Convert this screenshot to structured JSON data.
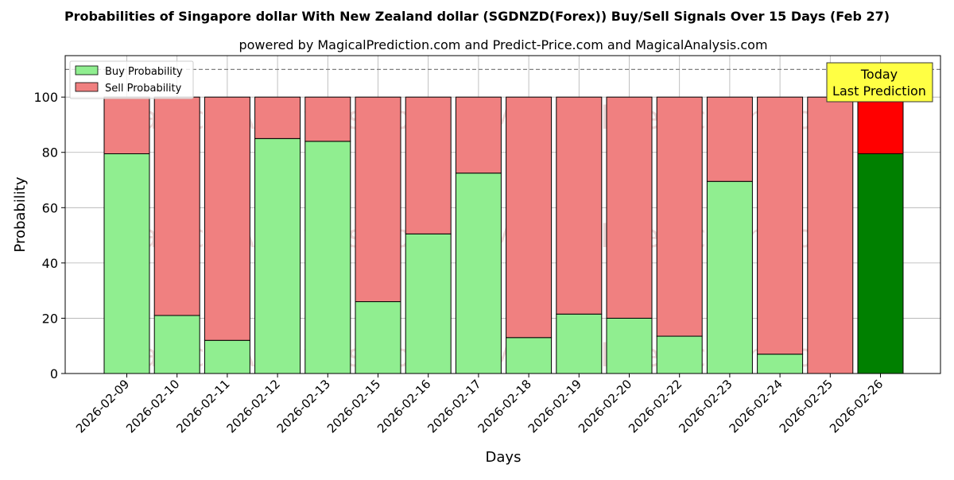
{
  "chart_data": {
    "type": "bar",
    "title": "Probabilities of Singapore dollar With New Zealand dollar (SGDNZD(Forex)) Buy/Sell Signals Over 15 Days (Feb 27)",
    "subtitle": "powered by MagicalPrediction.com and Predict-Price.com and MagicalAnalysis.com",
    "xlabel": "Days",
    "ylabel": "Probability",
    "ylim": [
      0,
      115
    ],
    "yticks": [
      0,
      20,
      40,
      60,
      80,
      100
    ],
    "reference_line": 110,
    "grid": true,
    "legend_position": "top-left",
    "categories": [
      "2026-02-09",
      "2026-02-10",
      "2026-02-11",
      "2026-02-12",
      "2026-02-13",
      "2026-02-15",
      "2026-02-16",
      "2026-02-17",
      "2026-02-18",
      "2026-02-19",
      "2026-02-20",
      "2026-02-22",
      "2026-02-23",
      "2026-02-24",
      "2026-02-25",
      "2026-02-26"
    ],
    "series": [
      {
        "name": "Buy Probability",
        "color": "#90EE90",
        "values": [
          79.5,
          21.0,
          12.0,
          85.0,
          84.0,
          26.0,
          50.5,
          72.5,
          13.0,
          21.5,
          20.0,
          13.5,
          69.5,
          7.0,
          0.0,
          79.5
        ]
      },
      {
        "name": "Sell Probability",
        "color": "#F08080",
        "values": [
          20.5,
          79.0,
          88.0,
          15.0,
          16.0,
          74.0,
          49.5,
          27.5,
          87.0,
          78.5,
          80.0,
          86.5,
          30.5,
          93.0,
          100.0,
          20.5
        ]
      }
    ],
    "highlight": {
      "index": 15,
      "buy_color": "#008000",
      "sell_color": "#FF0000"
    },
    "annotation": {
      "line1": "Today",
      "line2": "Last Prediction",
      "background": "#FFFF44"
    },
    "watermarks": [
      "MagicalAnalysis.com",
      "MagicalPrediction.com"
    ]
  }
}
